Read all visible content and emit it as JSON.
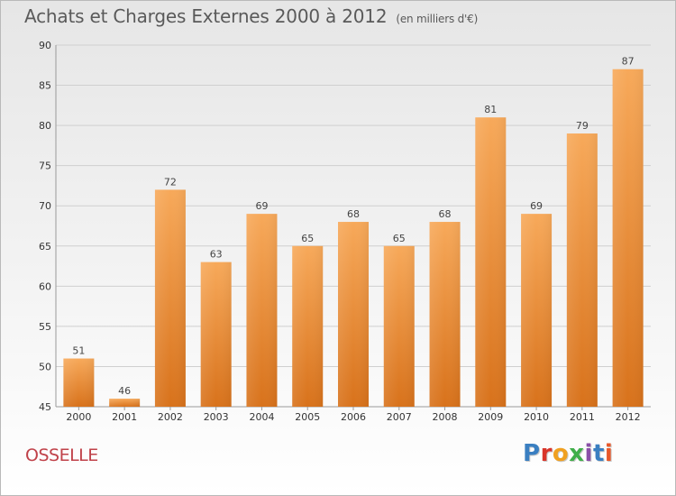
{
  "header": {
    "title": "Achats et Charges Externes 2000 à 2012",
    "subtitle": "(en milliers d'€)"
  },
  "footer": {
    "location": "OSSELLE",
    "logo": "Proxiti",
    "logo_colors": [
      "#3a7fc1",
      "#d9352a",
      "#f0a020",
      "#3fae49",
      "#8a4fa8",
      "#3a7fc1",
      "#e8582a"
    ]
  },
  "colors": {
    "bar_top": "#f7a95a",
    "bar_bottom": "#d8721b",
    "grid": "#cfcfcf",
    "axis": "#9a9a9a"
  },
  "chart_data": {
    "type": "bar",
    "categories": [
      "2000",
      "2001",
      "2002",
      "2003",
      "2004",
      "2005",
      "2006",
      "2007",
      "2008",
      "2009",
      "2010",
      "2011",
      "2012"
    ],
    "values": [
      51,
      46,
      72,
      63,
      69,
      65,
      68,
      65,
      68,
      81,
      69,
      79,
      87
    ],
    "title": "Achats et Charges Externes 2000 à 2012",
    "ylim": [
      45,
      90
    ],
    "yticks": [
      45,
      50,
      55,
      60,
      65,
      70,
      75,
      80,
      85,
      90
    ],
    "grid": true,
    "legend": "none"
  }
}
